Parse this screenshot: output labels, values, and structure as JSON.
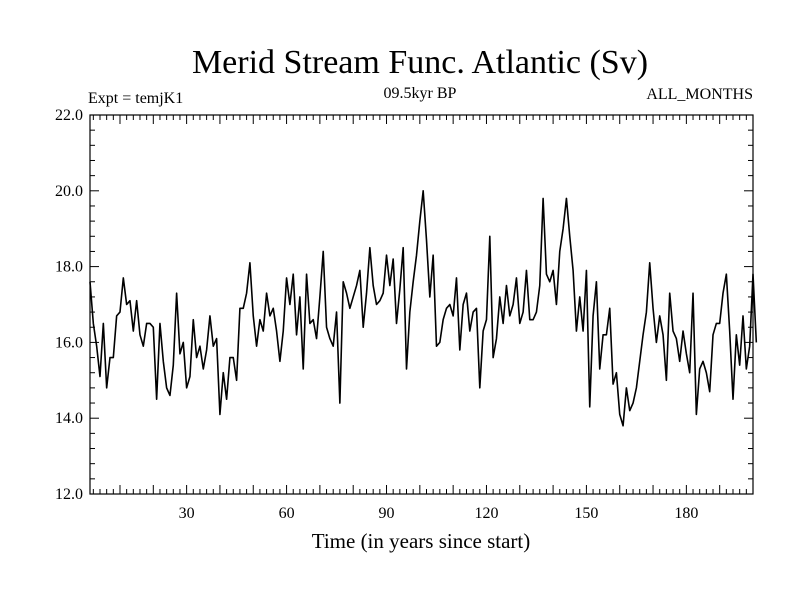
{
  "chart_data": {
    "type": "line",
    "title": "Merid Stream Func. Atlantic (Sv)",
    "subtitle_left": "Expt = temjK1",
    "subtitle_center": "09.5kyr BP",
    "subtitle_right": "ALL_MONTHS",
    "xlabel": "Time (in years since start)",
    "ylabel": "",
    "xlim": [
      1,
      200
    ],
    "ylim": [
      12.0,
      22.0
    ],
    "x_ticks": [
      30,
      60,
      90,
      120,
      150,
      180
    ],
    "y_ticks": [
      12.0,
      14.0,
      16.0,
      18.0,
      20.0,
      22.0
    ],
    "y_tick_labels": [
      "12.0",
      "14.0",
      "16.0",
      "18.0",
      "20.0",
      "22.0"
    ],
    "series": [
      {
        "name": "Merid Stream Func. Atlantic",
        "color": "#000000",
        "values": [
          17.6,
          16.5,
          15.9,
          15.1,
          16.5,
          14.8,
          15.6,
          15.6,
          16.7,
          16.8,
          17.7,
          17.0,
          17.1,
          16.3,
          17.1,
          16.2,
          15.9,
          16.5,
          16.5,
          16.4,
          14.5,
          16.5,
          15.5,
          14.8,
          14.6,
          15.4,
          17.3,
          15.7,
          16.0,
          14.8,
          15.1,
          16.6,
          15.6,
          15.9,
          15.3,
          15.8,
          16.7,
          15.9,
          16.1,
          14.1,
          15.2,
          14.5,
          15.6,
          15.6,
          15.0,
          16.9,
          16.9,
          17.3,
          18.1,
          16.7,
          15.9,
          16.6,
          16.3,
          17.3,
          16.7,
          16.9,
          16.3,
          15.5,
          16.3,
          17.7,
          17.0,
          17.8,
          16.2,
          17.2,
          15.3,
          17.8,
          16.5,
          16.6,
          16.1,
          17.2,
          18.4,
          16.4,
          16.1,
          15.9,
          16.8,
          14.4,
          17.6,
          17.3,
          16.9,
          17.2,
          17.5,
          17.9,
          16.4,
          17.3,
          18.5,
          17.5,
          17.0,
          17.1,
          17.3,
          18.3,
          17.5,
          18.2,
          16.5,
          17.4,
          18.5,
          15.3,
          16.8,
          17.6,
          18.3,
          19.2,
          20.0,
          18.7,
          17.2,
          18.3,
          15.9,
          16.0,
          16.6,
          16.9,
          17.0,
          16.7,
          17.7,
          15.8,
          17.0,
          17.3,
          16.3,
          16.8,
          16.9,
          14.8,
          16.3,
          16.6,
          18.8,
          15.6,
          16.1,
          17.2,
          16.5,
          17.5,
          16.7,
          17.0,
          17.7,
          16.5,
          16.8,
          17.9,
          16.6,
          16.6,
          16.8,
          17.5,
          19.8,
          17.8,
          17.6,
          17.9,
          17.0,
          18.4,
          19.0,
          19.8,
          18.8,
          17.9,
          16.3,
          17.2,
          16.3,
          17.9,
          14.3,
          16.7,
          17.6,
          15.3,
          16.2,
          16.2,
          16.9,
          14.9,
          15.2,
          14.1,
          13.8,
          14.8,
          14.2,
          14.4,
          14.8,
          15.5,
          16.2,
          16.8,
          18.1,
          16.9,
          16.0,
          16.7,
          16.2,
          15.0,
          17.3,
          16.3,
          16.1,
          15.5,
          16.3,
          15.7,
          15.2,
          17.3,
          14.1,
          15.3,
          15.5,
          15.2,
          14.7,
          16.2,
          16.5,
          16.5,
          17.3,
          17.8,
          16.3,
          14.5,
          16.2,
          15.4,
          16.7,
          15.3,
          15.9,
          17.8,
          16.0
        ]
      }
    ]
  }
}
